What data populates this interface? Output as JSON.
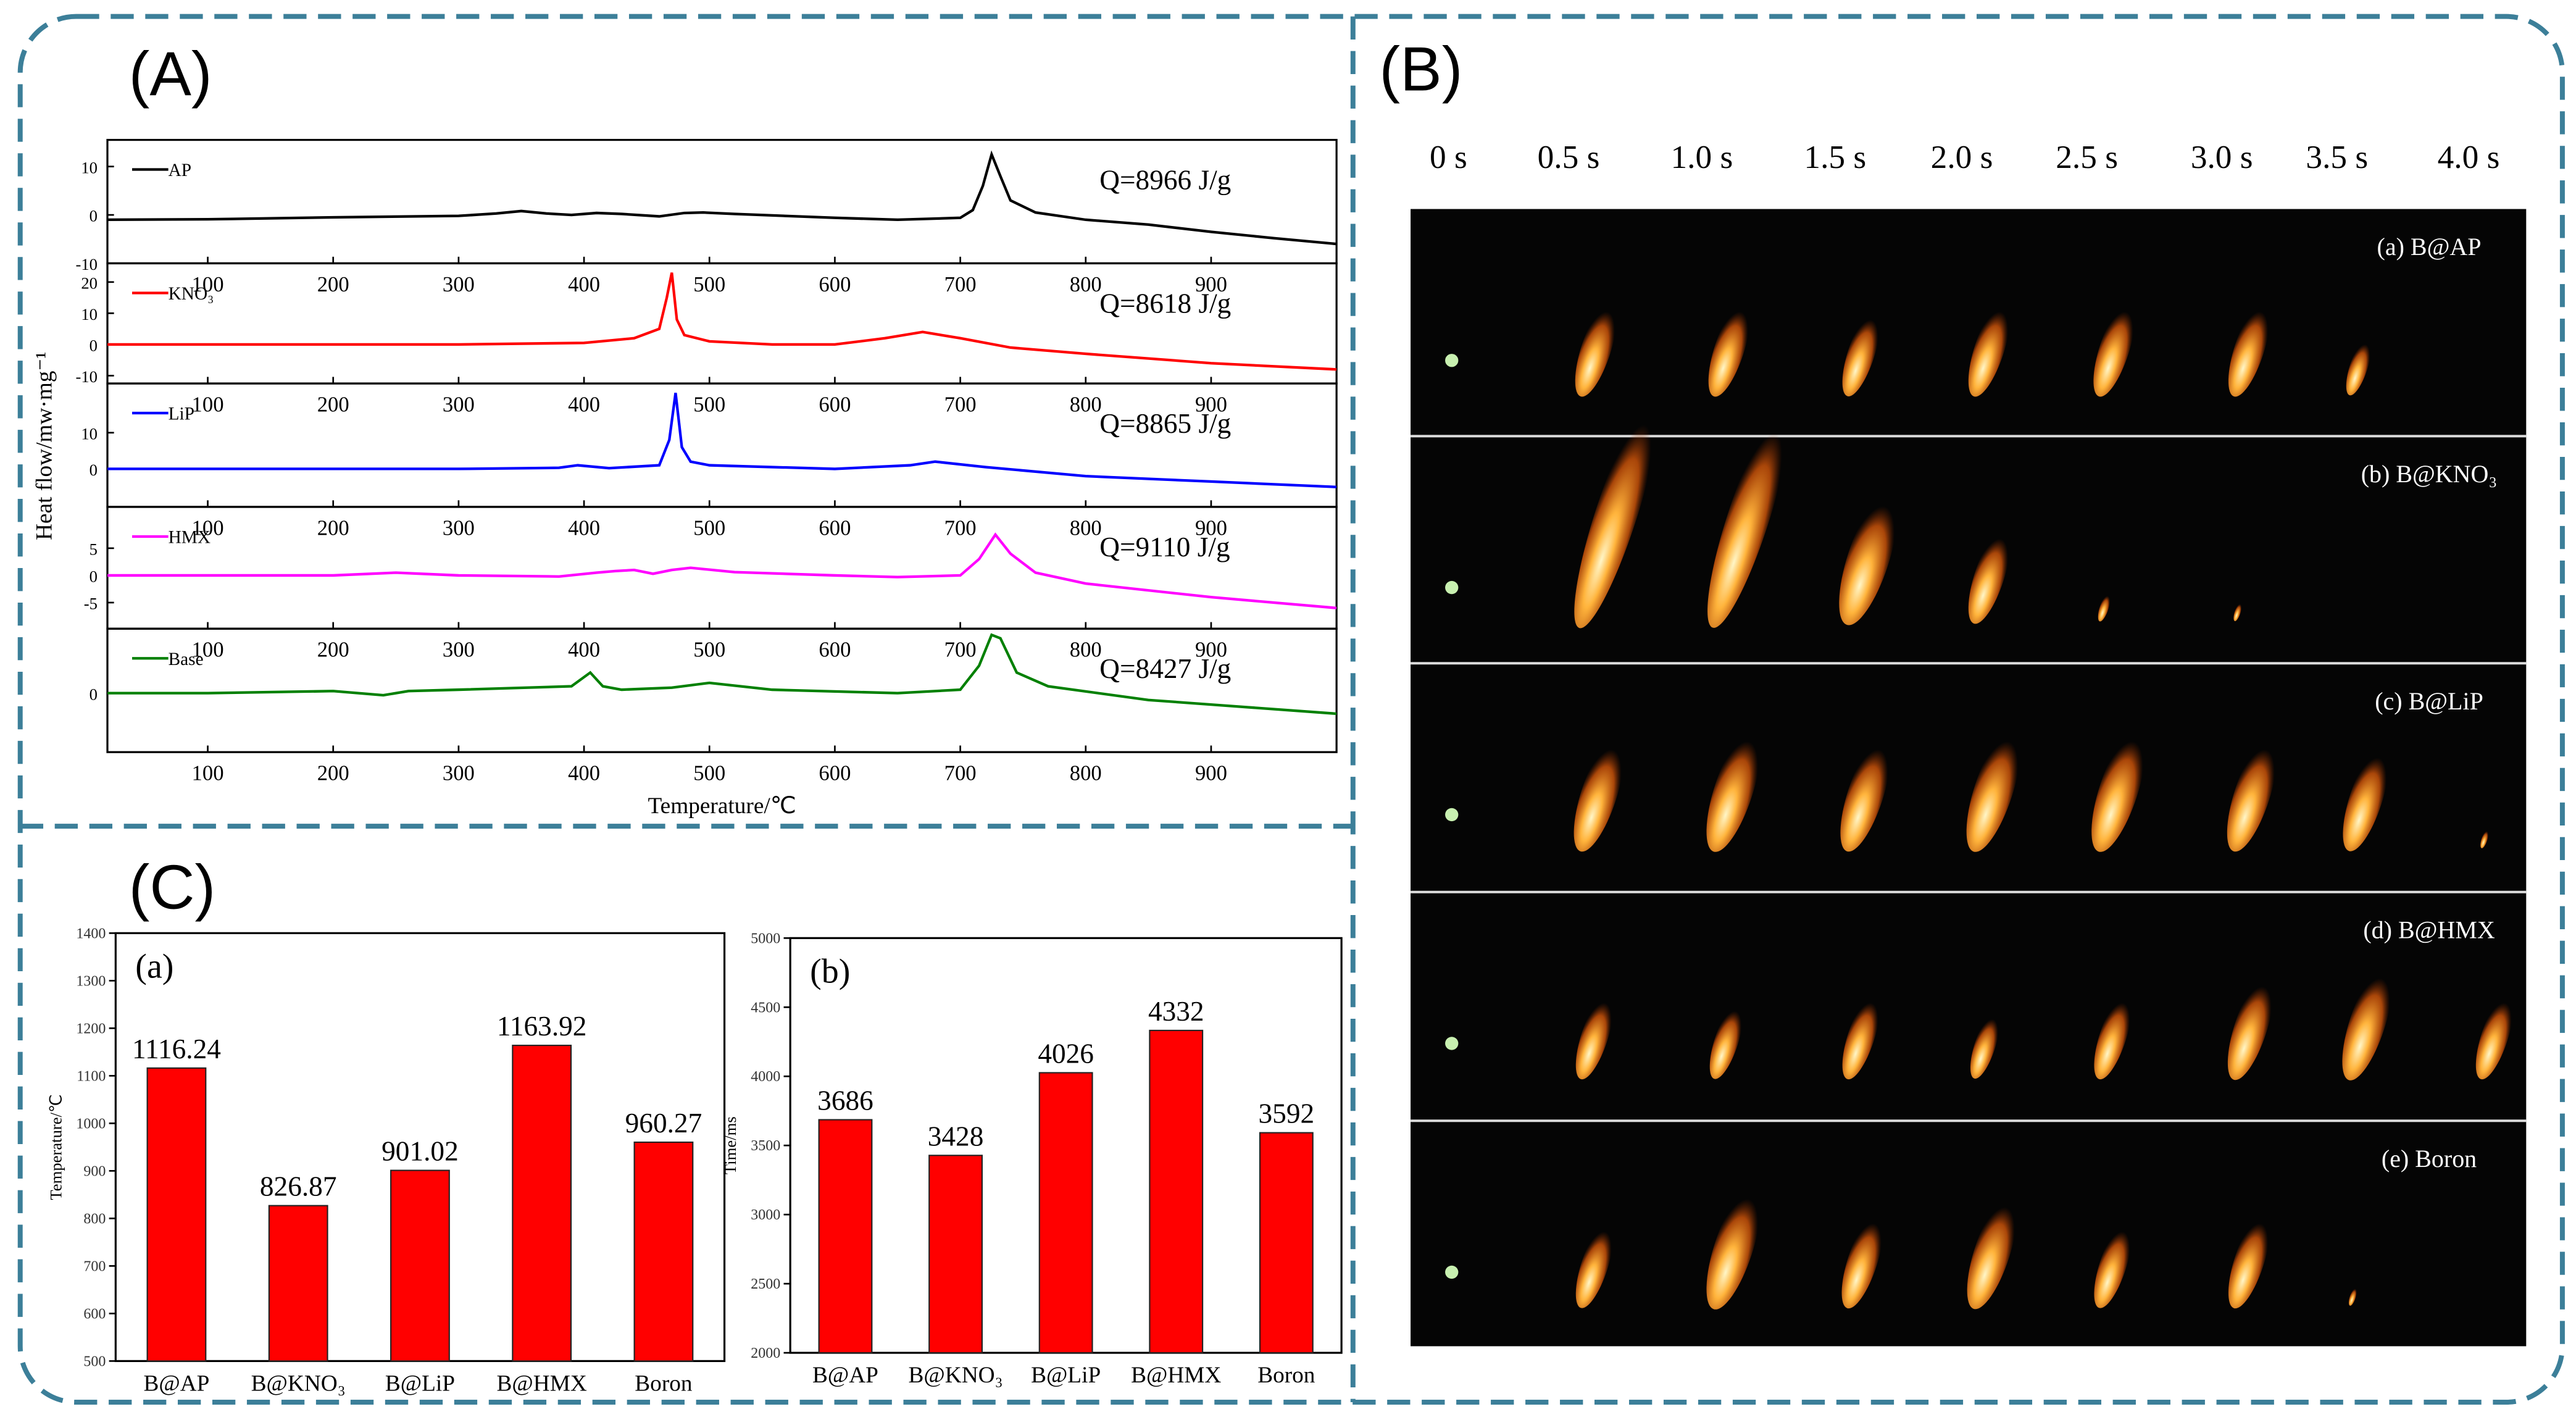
{
  "panel_labels": [
    "(A)",
    "(B)",
    "(C)"
  ],
  "photos": {
    "times": [
      "0 s",
      "0.5 s",
      "1.0 s",
      "1.5 s",
      "2.0 s",
      "2.5 s",
      "3.0 s",
      "3.5 s",
      "4.0 s"
    ],
    "samples": [
      "(a) B@AP",
      "(b) B@KNO₃",
      "(c) B@LiP",
      "(d) B@HMX",
      "(e) Boron"
    ]
  },
  "chart_data": [
    {
      "type": "line",
      "ylabel": "Heat flow/mw·mg⁻¹",
      "annotation": "Q=8966 J/g",
      "xlim": [
        20,
        1000
      ],
      "xticks": [
        100,
        200,
        300,
        400,
        500,
        600,
        700,
        800,
        900
      ],
      "ylim": [
        -10,
        15.5
      ],
      "yticks": [
        -10,
        0,
        10
      ],
      "x": [
        20,
        100,
        200,
        300,
        330,
        350,
        370,
        390,
        410,
        430,
        460,
        480,
        495,
        520,
        600,
        650,
        700,
        710,
        718,
        725,
        732,
        740,
        760,
        800,
        850,
        900,
        950,
        1000
      ],
      "series": [
        {
          "name": "AP",
          "color": "#000000",
          "values": [
            -1,
            -0.9,
            -0.5,
            -0.2,
            0.3,
            0.8,
            0.3,
            0,
            0.4,
            0.2,
            -0.3,
            0.4,
            0.5,
            0.2,
            -0.6,
            -1,
            -0.6,
            1,
            6,
            12.5,
            8,
            3,
            0.5,
            -1,
            -2,
            -3.5,
            -4.8,
            -6
          ]
        }
      ]
    },
    {
      "type": "line",
      "annotation": "Q=8618 J/g",
      "xlim": [
        20,
        1000
      ],
      "xticks": [
        100,
        200,
        300,
        400,
        500,
        600,
        700,
        800,
        900
      ],
      "ylim": [
        -12.5,
        26
      ],
      "yticks": [
        -10,
        0,
        10,
        20
      ],
      "x": [
        20,
        100,
        200,
        300,
        400,
        440,
        460,
        466,
        470,
        474,
        480,
        500,
        550,
        600,
        640,
        670,
        700,
        740,
        800,
        900,
        1000
      ],
      "series": [
        {
          "name": "KNO₃",
          "color": "#ff0000",
          "values": [
            0,
            0,
            0,
            0,
            0.5,
            2,
            5,
            15,
            23,
            8,
            3,
            1,
            0,
            0,
            2,
            4,
            2,
            -1,
            -3,
            -6,
            -8
          ]
        }
      ]
    },
    {
      "type": "line",
      "annotation": "Q=8865 J/g",
      "xlim": [
        20,
        1000
      ],
      "xticks": [
        100,
        200,
        300,
        400,
        500,
        600,
        700,
        800,
        900
      ],
      "ylim": [
        -10.5,
        23.6
      ],
      "yticks": [
        0,
        10
      ],
      "x": [
        20,
        100,
        200,
        300,
        380,
        395,
        420,
        460,
        468,
        473,
        478,
        485,
        500,
        600,
        660,
        680,
        720,
        800,
        900,
        1000
      ],
      "series": [
        {
          "name": "LiP",
          "color": "#0000ff",
          "values": [
            0,
            0,
            0,
            0,
            0.3,
            1,
            0.2,
            1,
            8,
            21,
            6,
            2,
            1,
            0,
            1,
            2,
            0.5,
            -2,
            -3.5,
            -5
          ]
        }
      ]
    },
    {
      "type": "line",
      "annotation": "Q=9110 J/g",
      "xlim": [
        20,
        1000
      ],
      "xticks": [
        100,
        200,
        300,
        400,
        500,
        600,
        700,
        800,
        900
      ],
      "ylim": [
        -9.8,
        12.6
      ],
      "yticks": [
        -5,
        0,
        5
      ],
      "x": [
        20,
        100,
        200,
        250,
        300,
        380,
        410,
        425,
        440,
        455,
        470,
        485,
        520,
        600,
        650,
        700,
        715,
        728,
        740,
        760,
        800,
        900,
        1000
      ],
      "series": [
        {
          "name": "HMX",
          "color": "#ff00ff",
          "values": [
            0,
            0,
            0,
            0.5,
            0,
            -0.2,
            0.5,
            0.8,
            1,
            0.3,
            1,
            1.4,
            0.6,
            0,
            -0.3,
            0,
            3,
            7.5,
            4,
            0.5,
            -1.5,
            -4,
            -6
          ]
        }
      ]
    },
    {
      "type": "line",
      "annotation": "Q=8427 J/g",
      "xlabel": "Temperature/℃",
      "xlim": [
        20,
        1000
      ],
      "xticks": [
        100,
        200,
        300,
        400,
        500,
        600,
        700,
        800,
        900
      ],
      "ylim": [
        -8.6,
        9.4
      ],
      "yticks": [
        0
      ],
      "x": [
        20,
        100,
        200,
        240,
        260,
        300,
        390,
        405,
        415,
        430,
        470,
        500,
        550,
        650,
        700,
        715,
        725,
        732,
        745,
        770,
        850,
        1000
      ],
      "series": [
        {
          "name": "Base",
          "color": "#008000",
          "values": [
            0,
            0,
            0.3,
            -0.3,
            0.3,
            0.5,
            1,
            3,
            1,
            0.5,
            0.8,
            1.5,
            0.5,
            0,
            0.5,
            4,
            8.5,
            8,
            3,
            1,
            -1,
            -3
          ]
        }
      ]
    },
    {
      "type": "bar",
      "label": "(a)",
      "ylabel": "Temperature/℃",
      "color": "#ff0000",
      "categories": [
        "B@AP",
        "B@KNO₃",
        "B@LiP",
        "B@HMX",
        "Boron"
      ],
      "values": [
        1116.24,
        826.87,
        901.02,
        1163.92,
        960.27
      ],
      "ylim": [
        500,
        1400
      ],
      "yticks": [
        500,
        600,
        700,
        800,
        900,
        1000,
        1100,
        1200,
        1300,
        1400
      ]
    },
    {
      "type": "bar",
      "label": "(b)",
      "ylabel": "Time/ms",
      "color": "#ff0000",
      "categories": [
        "B@AP",
        "B@KNO₃",
        "B@LiP",
        "B@HMX",
        "Boron"
      ],
      "values": [
        3686,
        3428,
        4026,
        4332,
        3592
      ],
      "ylim": [
        2000,
        5000
      ],
      "yticks": [
        2000,
        2500,
        3000,
        3500,
        4000,
        4500,
        5000
      ]
    }
  ]
}
